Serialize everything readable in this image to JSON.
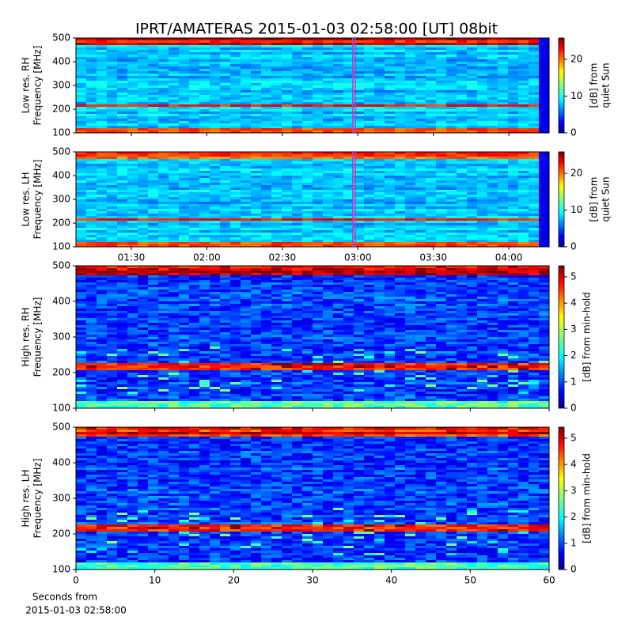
{
  "title": "IPRT/AMATERAS 2015-01-03 02:58:00 [UT]   08bit",
  "chart_data": [
    {
      "type": "heatmap",
      "ylabel": [
        "Low res. RH",
        "Frequency [MHz]"
      ],
      "ylim": [
        100,
        500
      ],
      "yticks": [
        100,
        200,
        300,
        400,
        500
      ],
      "xlim": [
        "01:08",
        "04:16"
      ],
      "xticks": [
        "01:30",
        "02:00",
        "02:30",
        "03:00",
        "03:30",
        "04:00"
      ],
      "xtick_labels": false,
      "highlight": [
        "02:58",
        "02:59"
      ],
      "highlight_color": "#c040c0",
      "colorbar": {
        "label": [
          "[dB] from",
          "quiet Sun"
        ],
        "lim": [
          0,
          25.8
        ],
        "ticks": [
          0,
          10,
          20
        ]
      }
    },
    {
      "type": "heatmap",
      "ylabel": [
        "Low res. LH",
        "Frequency [MHz]"
      ],
      "ylim": [
        100,
        500
      ],
      "yticks": [
        100,
        200,
        300,
        400,
        500
      ],
      "xlim": [
        "01:08",
        "04:16"
      ],
      "xticks": [
        "01:30",
        "02:00",
        "02:30",
        "03:00",
        "03:30",
        "04:00"
      ],
      "xtick_labels": true,
      "highlight": [
        "02:58",
        "02:59"
      ],
      "highlight_color": "#c040c0",
      "colorbar": {
        "label": [
          "[dB] from",
          "quiet Sun"
        ],
        "lim": [
          0,
          25.8
        ],
        "ticks": [
          0,
          10,
          20
        ]
      }
    },
    {
      "type": "heatmap",
      "ylabel": [
        "High res. RH",
        "Frequency [MHz]"
      ],
      "ylim": [
        100,
        500
      ],
      "yticks": [
        100,
        200,
        300,
        400,
        500
      ],
      "xlim": [
        0,
        60
      ],
      "xticks": [
        0,
        10,
        20,
        30,
        40,
        50,
        60
      ],
      "xtick_labels": false,
      "colorbar": {
        "label": [
          "[dB] from min-hold"
        ],
        "lim": [
          0,
          5.42
        ],
        "ticks": [
          0,
          1,
          2,
          3,
          4,
          5
        ]
      }
    },
    {
      "type": "heatmap",
      "ylabel": [
        "High res. LH",
        "Frequency [MHz]"
      ],
      "ylim": [
        100,
        500
      ],
      "yticks": [
        100,
        200,
        300,
        400,
        500
      ],
      "xlim": [
        0,
        60
      ],
      "xticks": [
        0,
        10,
        20,
        30,
        40,
        50,
        60
      ],
      "xtick_labels": true,
      "xlabel": [
        "Seconds from",
        "2015-01-03 02:58:00"
      ],
      "colorbar": {
        "label": [
          "[dB] from min-hold"
        ],
        "lim": [
          0,
          5.42
        ],
        "ticks": [
          0,
          1,
          2,
          3,
          4,
          5
        ]
      }
    }
  ]
}
